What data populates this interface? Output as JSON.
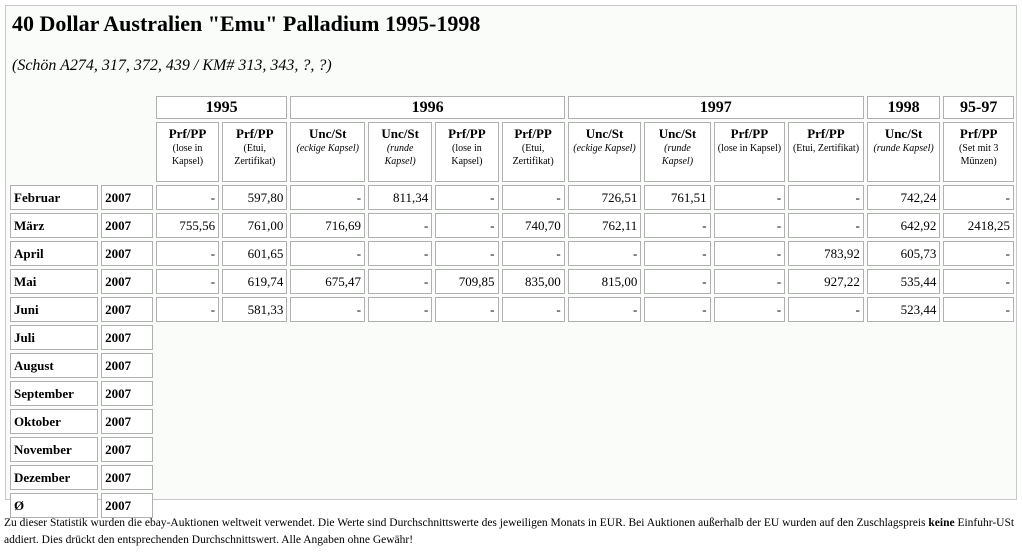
{
  "title": "40 Dollar Australien \"Emu\" Palladium 1995-1998",
  "subtitle": "(Schön A274, 317, 372, 439 / KM# 313, 343, ?, ?)",
  "table": {
    "groups": [
      {
        "year": "1995",
        "columns": [
          {
            "grade": "Prf/PP",
            "note": "(lose in Kapsel)"
          },
          {
            "grade": "Prf/PP",
            "note": "(Etui, Zertifikat)"
          }
        ]
      },
      {
        "year": "1996",
        "columns": [
          {
            "grade": "Unc/St",
            "note": "(eckige Kapsel)",
            "style": "italic"
          },
          {
            "grade": "Unc/St",
            "note": "(runde Kapsel)",
            "style": "italic"
          },
          {
            "grade": "Prf/PP",
            "note": "(lose in Kapsel)"
          },
          {
            "grade": "Prf/PP",
            "note": "(Etui, Zertifikat)"
          }
        ]
      },
      {
        "year": "1997",
        "columns": [
          {
            "grade": "Unc/St",
            "note": "(eckige Kapsel)",
            "style": "italic"
          },
          {
            "grade": "Unc/St",
            "note": "(runde Kapsel)",
            "style": "italic"
          },
          {
            "grade": "Prf/PP",
            "note": "(lose in Kapsel)"
          },
          {
            "grade": "Prf/PP",
            "note": "(Etui, Zertifikat)"
          }
        ]
      },
      {
        "year": "1998",
        "columns": [
          {
            "grade": "Unc/St",
            "note": "(runde Kapsel)",
            "style": "italic"
          }
        ]
      },
      {
        "year": "95-97",
        "columns": [
          {
            "grade": "Prf/PP",
            "note": "(Set mit 3 Münzen)"
          }
        ]
      }
    ],
    "rows": [
      {
        "month": "Februar",
        "year": "2007",
        "values": [
          "-",
          "597,80",
          "-",
          "811,34",
          "-",
          "-",
          "726,51",
          "761,51",
          "-",
          "-",
          "742,24",
          "-"
        ]
      },
      {
        "month": "März",
        "year": "2007",
        "values": [
          "755,56",
          "761,00",
          "716,69",
          "-",
          "-",
          "740,70",
          "762,11",
          "-",
          "-",
          "-",
          "642,92",
          "2418,25"
        ]
      },
      {
        "month": "April",
        "year": "2007",
        "values": [
          "-",
          "601,65",
          "-",
          "-",
          "-",
          "-",
          "-",
          "-",
          "-",
          "783,92",
          "605,73",
          "-"
        ]
      },
      {
        "month": "Mai",
        "year": "2007",
        "values": [
          "-",
          "619,74",
          "675,47",
          "-",
          "709,85",
          "835,00",
          "815,00",
          "-",
          "-",
          "927,22",
          "535,44",
          "-"
        ]
      },
      {
        "month": "Juni",
        "year": "2007",
        "values": [
          "-",
          "581,33",
          "-",
          "-",
          "-",
          "-",
          "-",
          "-",
          "-",
          "-",
          "523,44",
          "-"
        ]
      },
      {
        "month": "Juli",
        "year": "2007"
      },
      {
        "month": "August",
        "year": "2007"
      },
      {
        "month": "September",
        "year": "2007"
      },
      {
        "month": "Oktober",
        "year": "2007"
      },
      {
        "month": "November",
        "year": "2007"
      },
      {
        "month": "Dezember",
        "year": "2007"
      },
      {
        "month": "Ø",
        "year": "2007"
      }
    ]
  },
  "footer": [
    "Zu dieser Statistik wurden die ebay-Auktionen weltweit verwendet. Die Werte sind Durchschnittswerte des jeweiligen Monats in EUR. Bei Auktionen außerhalb der EU wurden auf den Zuschlagspreis ",
    "keine",
    " Einfuhr-USt addiert. Dies drückt den entsprechenden Durchschnittswert. Alle Angaben ohne Gewähr!"
  ]
}
